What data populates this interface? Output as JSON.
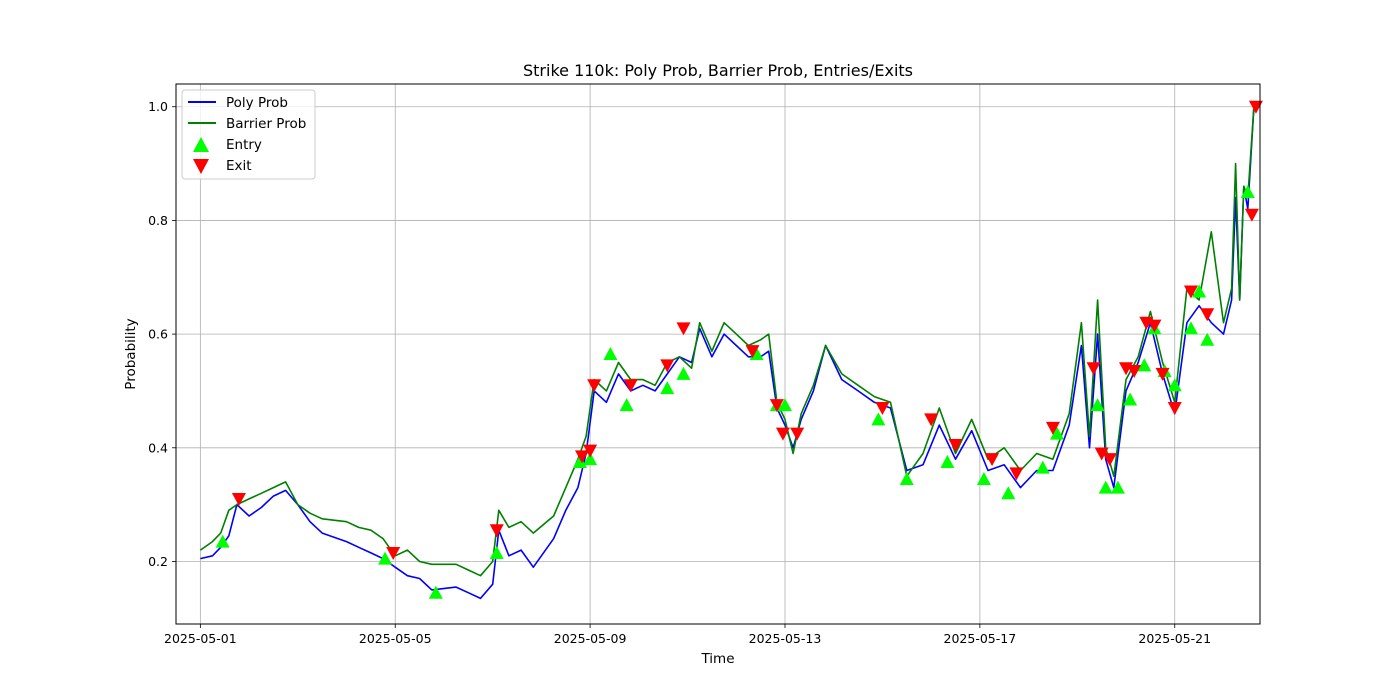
{
  "chart_data": {
    "type": "line",
    "title": "Strike 110k: Poly Prob, Barrier Prob, Entries/Exits",
    "xlabel": "Time",
    "ylabel": "Probability",
    "xlim": [
      "2025-04-30T12:00",
      "2025-05-22T18:00"
    ],
    "ylim": [
      0.09,
      1.04
    ],
    "x_ticks": [
      "2025-05-01",
      "2025-05-05",
      "2025-05-09",
      "2025-05-13",
      "2025-05-17",
      "2025-05-21"
    ],
    "y_ticks": [
      0.2,
      0.4,
      0.6,
      0.8,
      1.0
    ],
    "y_tick_labels": [
      "0.2",
      "0.4",
      "0.6",
      "0.8",
      "1.0"
    ],
    "grid": true,
    "legend_position": "top-left",
    "series": [
      {
        "name": "Poly Prob",
        "color": "#0000ff",
        "points": [
          [
            "2025-05-01T00:00",
            0.205
          ],
          [
            "2025-05-01T06:00",
            0.21
          ],
          [
            "2025-05-01T10:00",
            0.225
          ],
          [
            "2025-05-01T14:00",
            0.245
          ],
          [
            "2025-05-01T18:00",
            0.3
          ],
          [
            "2025-05-02T00:00",
            0.28
          ],
          [
            "2025-05-02T06:00",
            0.295
          ],
          [
            "2025-05-02T12:00",
            0.315
          ],
          [
            "2025-05-02T18:00",
            0.325
          ],
          [
            "2025-05-03T00:00",
            0.3
          ],
          [
            "2025-05-03T06:00",
            0.27
          ],
          [
            "2025-05-03T12:00",
            0.25
          ],
          [
            "2025-05-04T00:00",
            0.235
          ],
          [
            "2025-05-04T06:00",
            0.225
          ],
          [
            "2025-05-04T12:00",
            0.215
          ],
          [
            "2025-05-04T18:00",
            0.205
          ],
          [
            "2025-05-05T00:00",
            0.19
          ],
          [
            "2025-05-05T06:00",
            0.175
          ],
          [
            "2025-05-05T12:00",
            0.17
          ],
          [
            "2025-05-05T18:00",
            0.15
          ],
          [
            "2025-05-06T06:00",
            0.155
          ],
          [
            "2025-05-06T12:00",
            0.145
          ],
          [
            "2025-05-06T18:00",
            0.135
          ],
          [
            "2025-05-07T00:00",
            0.16
          ],
          [
            "2025-05-07T03:00",
            0.255
          ],
          [
            "2025-05-07T08:00",
            0.21
          ],
          [
            "2025-05-07T14:00",
            0.22
          ],
          [
            "2025-05-07T20:00",
            0.19
          ],
          [
            "2025-05-08T06:00",
            0.24
          ],
          [
            "2025-05-08T12:00",
            0.29
          ],
          [
            "2025-05-08T18:00",
            0.33
          ],
          [
            "2025-05-08T22:00",
            0.39
          ],
          [
            "2025-05-09T02:00",
            0.5
          ],
          [
            "2025-05-09T08:00",
            0.48
          ],
          [
            "2025-05-09T14:00",
            0.53
          ],
          [
            "2025-05-09T20:00",
            0.5
          ],
          [
            "2025-05-10T02:00",
            0.51
          ],
          [
            "2025-05-10T08:00",
            0.5
          ],
          [
            "2025-05-10T14:00",
            0.53
          ],
          [
            "2025-05-10T20:00",
            0.56
          ],
          [
            "2025-05-11T02:00",
            0.55
          ],
          [
            "2025-05-11T06:00",
            0.61
          ],
          [
            "2025-05-11T12:00",
            0.56
          ],
          [
            "2025-05-11T18:00",
            0.6
          ],
          [
            "2025-05-12T00:00",
            0.58
          ],
          [
            "2025-05-12T06:00",
            0.56
          ],
          [
            "2025-05-12T12:00",
            0.56
          ],
          [
            "2025-05-12T16:00",
            0.57
          ],
          [
            "2025-05-12T20:00",
            0.47
          ],
          [
            "2025-05-13T00:00",
            0.44
          ],
          [
            "2025-05-13T04:00",
            0.4
          ],
          [
            "2025-05-13T08:00",
            0.45
          ],
          [
            "2025-05-13T14:00",
            0.5
          ],
          [
            "2025-05-13T20:00",
            0.58
          ],
          [
            "2025-05-14T04:00",
            0.52
          ],
          [
            "2025-05-14T12:00",
            0.5
          ],
          [
            "2025-05-14T20:00",
            0.48
          ],
          [
            "2025-05-15T04:00",
            0.47
          ],
          [
            "2025-05-15T12:00",
            0.36
          ],
          [
            "2025-05-15T20:00",
            0.37
          ],
          [
            "2025-05-16T04:00",
            0.44
          ],
          [
            "2025-05-16T12:00",
            0.38
          ],
          [
            "2025-05-16T20:00",
            0.43
          ],
          [
            "2025-05-17T04:00",
            0.36
          ],
          [
            "2025-05-17T12:00",
            0.37
          ],
          [
            "2025-05-17T20:00",
            0.33
          ],
          [
            "2025-05-18T04:00",
            0.36
          ],
          [
            "2025-05-18T12:00",
            0.36
          ],
          [
            "2025-05-18T20:00",
            0.44
          ],
          [
            "2025-05-19T02:00",
            0.58
          ],
          [
            "2025-05-19T06:00",
            0.4
          ],
          [
            "2025-05-19T10:00",
            0.6
          ],
          [
            "2025-05-19T14:00",
            0.38
          ],
          [
            "2025-05-19T18:00",
            0.33
          ],
          [
            "2025-05-20T00:00",
            0.5
          ],
          [
            "2025-05-20T06:00",
            0.55
          ],
          [
            "2025-05-20T12:00",
            0.62
          ],
          [
            "2025-05-20T18:00",
            0.53
          ],
          [
            "2025-05-21T00:00",
            0.46
          ],
          [
            "2025-05-21T06:00",
            0.62
          ],
          [
            "2025-05-21T12:00",
            0.65
          ],
          [
            "2025-05-21T18:00",
            0.62
          ],
          [
            "2025-05-22T00:00",
            0.6
          ],
          [
            "2025-05-22T04:00",
            0.66
          ],
          [
            "2025-05-22T06:00",
            0.84
          ],
          [
            "2025-05-22T08:00",
            0.66
          ],
          [
            "2025-05-22T10:00",
            0.86
          ],
          [
            "2025-05-22T12:00",
            0.82
          ],
          [
            "2025-05-22T15:00",
            1.0
          ]
        ]
      },
      {
        "name": "Barrier Prob",
        "color": "#008000",
        "points": [
          [
            "2025-05-01T00:00",
            0.22
          ],
          [
            "2025-05-01T06:00",
            0.235
          ],
          [
            "2025-05-01T10:00",
            0.25
          ],
          [
            "2025-05-01T14:00",
            0.29
          ],
          [
            "2025-05-01T18:00",
            0.3
          ],
          [
            "2025-05-02T00:00",
            0.31
          ],
          [
            "2025-05-02T06:00",
            0.32
          ],
          [
            "2025-05-02T12:00",
            0.33
          ],
          [
            "2025-05-02T18:00",
            0.34
          ],
          [
            "2025-05-03T00:00",
            0.3
          ],
          [
            "2025-05-03T06:00",
            0.285
          ],
          [
            "2025-05-03T12:00",
            0.275
          ],
          [
            "2025-05-04T00:00",
            0.27
          ],
          [
            "2025-05-04T06:00",
            0.26
          ],
          [
            "2025-05-04T12:00",
            0.255
          ],
          [
            "2025-05-04T18:00",
            0.24
          ],
          [
            "2025-05-05T00:00",
            0.21
          ],
          [
            "2025-05-05T06:00",
            0.22
          ],
          [
            "2025-05-05T12:00",
            0.2
          ],
          [
            "2025-05-05T18:00",
            0.195
          ],
          [
            "2025-05-06T06:00",
            0.195
          ],
          [
            "2025-05-06T12:00",
            0.185
          ],
          [
            "2025-05-06T18:00",
            0.175
          ],
          [
            "2025-05-07T00:00",
            0.2
          ],
          [
            "2025-05-07T03:00",
            0.29
          ],
          [
            "2025-05-07T08:00",
            0.26
          ],
          [
            "2025-05-07T14:00",
            0.27
          ],
          [
            "2025-05-07T20:00",
            0.25
          ],
          [
            "2025-05-08T06:00",
            0.28
          ],
          [
            "2025-05-08T12:00",
            0.33
          ],
          [
            "2025-05-08T18:00",
            0.38
          ],
          [
            "2025-05-08T22:00",
            0.42
          ],
          [
            "2025-05-09T02:00",
            0.52
          ],
          [
            "2025-05-09T08:00",
            0.5
          ],
          [
            "2025-05-09T14:00",
            0.55
          ],
          [
            "2025-05-09T20:00",
            0.52
          ],
          [
            "2025-05-10T02:00",
            0.52
          ],
          [
            "2025-05-10T08:00",
            0.51
          ],
          [
            "2025-05-10T14:00",
            0.55
          ],
          [
            "2025-05-10T20:00",
            0.56
          ],
          [
            "2025-05-11T02:00",
            0.54
          ],
          [
            "2025-05-11T06:00",
            0.62
          ],
          [
            "2025-05-11T12:00",
            0.57
          ],
          [
            "2025-05-11T18:00",
            0.62
          ],
          [
            "2025-05-12T00:00",
            0.6
          ],
          [
            "2025-05-12T06:00",
            0.58
          ],
          [
            "2025-05-12T12:00",
            0.59
          ],
          [
            "2025-05-12T16:00",
            0.6
          ],
          [
            "2025-05-12T20:00",
            0.48
          ],
          [
            "2025-05-13T00:00",
            0.45
          ],
          [
            "2025-05-13T04:00",
            0.39
          ],
          [
            "2025-05-13T08:00",
            0.46
          ],
          [
            "2025-05-13T14:00",
            0.51
          ],
          [
            "2025-05-13T20:00",
            0.58
          ],
          [
            "2025-05-14T04:00",
            0.53
          ],
          [
            "2025-05-14T12:00",
            0.51
          ],
          [
            "2025-05-14T20:00",
            0.49
          ],
          [
            "2025-05-15T04:00",
            0.48
          ],
          [
            "2025-05-15T12:00",
            0.35
          ],
          [
            "2025-05-15T20:00",
            0.39
          ],
          [
            "2025-05-16T04:00",
            0.47
          ],
          [
            "2025-05-16T12:00",
            0.39
          ],
          [
            "2025-05-16T20:00",
            0.45
          ],
          [
            "2025-05-17T04:00",
            0.38
          ],
          [
            "2025-05-17T12:00",
            0.4
          ],
          [
            "2025-05-17T20:00",
            0.36
          ],
          [
            "2025-05-18T04:00",
            0.39
          ],
          [
            "2025-05-18T12:00",
            0.38
          ],
          [
            "2025-05-18T20:00",
            0.46
          ],
          [
            "2025-05-19T02:00",
            0.62
          ],
          [
            "2025-05-19T06:00",
            0.42
          ],
          [
            "2025-05-19T10:00",
            0.66
          ],
          [
            "2025-05-19T14:00",
            0.4
          ],
          [
            "2025-05-19T18:00",
            0.35
          ],
          [
            "2025-05-20T00:00",
            0.52
          ],
          [
            "2025-05-20T06:00",
            0.56
          ],
          [
            "2025-05-20T12:00",
            0.64
          ],
          [
            "2025-05-20T18:00",
            0.55
          ],
          [
            "2025-05-21T00:00",
            0.48
          ],
          [
            "2025-05-21T06:00",
            0.68
          ],
          [
            "2025-05-21T12:00",
            0.66
          ],
          [
            "2025-05-21T18:00",
            0.78
          ],
          [
            "2025-05-22T00:00",
            0.62
          ],
          [
            "2025-05-22T04:00",
            0.68
          ],
          [
            "2025-05-22T06:00",
            0.9
          ],
          [
            "2025-05-22T08:00",
            0.66
          ],
          [
            "2025-05-22T10:00",
            0.86
          ],
          [
            "2025-05-22T12:00",
            0.84
          ],
          [
            "2025-05-22T15:00",
            1.0
          ]
        ]
      }
    ],
    "markers": [
      {
        "name": "Entry",
        "color": "#00ff00",
        "shape": "triangle-up",
        "points": [
          [
            "2025-05-01T11:00",
            0.235
          ],
          [
            "2025-05-04T19:00",
            0.205
          ],
          [
            "2025-05-05T20:00",
            0.145
          ],
          [
            "2025-05-07T02:00",
            0.215
          ],
          [
            "2025-05-08T19:00",
            0.375
          ],
          [
            "2025-05-09T00:00",
            0.38
          ],
          [
            "2025-05-09T10:00",
            0.565
          ],
          [
            "2025-05-09T18:00",
            0.475
          ],
          [
            "2025-05-10T14:00",
            0.505
          ],
          [
            "2025-05-10T22:00",
            0.53
          ],
          [
            "2025-05-12T10:00",
            0.565
          ],
          [
            "2025-05-12T20:00",
            0.475
          ],
          [
            "2025-05-13T00:00",
            0.475
          ],
          [
            "2025-05-14T22:00",
            0.45
          ],
          [
            "2025-05-15T12:00",
            0.345
          ],
          [
            "2025-05-16T08:00",
            0.375
          ],
          [
            "2025-05-17T02:00",
            0.345
          ],
          [
            "2025-05-17T14:00",
            0.32
          ],
          [
            "2025-05-18T07:00",
            0.365
          ],
          [
            "2025-05-18T14:00",
            0.425
          ],
          [
            "2025-05-19T10:00",
            0.475
          ],
          [
            "2025-05-19T14:00",
            0.33
          ],
          [
            "2025-05-19T20:00",
            0.33
          ],
          [
            "2025-05-20T02:00",
            0.485
          ],
          [
            "2025-05-20T09:00",
            0.545
          ],
          [
            "2025-05-20T14:00",
            0.61
          ],
          [
            "2025-05-20T19:00",
            0.535
          ],
          [
            "2025-05-21T00:00",
            0.51
          ],
          [
            "2025-05-21T08:00",
            0.61
          ],
          [
            "2025-05-21T12:00",
            0.675
          ],
          [
            "2025-05-21T16:00",
            0.59
          ],
          [
            "2025-05-22T12:00",
            0.85
          ]
        ]
      },
      {
        "name": "Exit",
        "color": "#ff0000",
        "shape": "triangle-down",
        "points": [
          [
            "2025-05-01T19:00",
            0.31
          ],
          [
            "2025-05-04T23:00",
            0.215
          ],
          [
            "2025-05-07T02:00",
            0.255
          ],
          [
            "2025-05-08T20:00",
            0.385
          ],
          [
            "2025-05-09T00:00",
            0.395
          ],
          [
            "2025-05-09T02:00",
            0.51
          ],
          [
            "2025-05-09T20:00",
            0.51
          ],
          [
            "2025-05-10T14:00",
            0.545
          ],
          [
            "2025-05-10T22:00",
            0.61
          ],
          [
            "2025-05-12T08:00",
            0.57
          ],
          [
            "2025-05-12T20:00",
            0.475
          ],
          [
            "2025-05-12T23:00",
            0.425
          ],
          [
            "2025-05-13T06:00",
            0.425
          ],
          [
            "2025-05-15T00:00",
            0.47
          ],
          [
            "2025-05-16T00:00",
            0.45
          ],
          [
            "2025-05-16T12:00",
            0.405
          ],
          [
            "2025-05-17T06:00",
            0.38
          ],
          [
            "2025-05-17T18:00",
            0.355
          ],
          [
            "2025-05-18T12:00",
            0.435
          ],
          [
            "2025-05-19T08:00",
            0.54
          ],
          [
            "2025-05-19T12:00",
            0.39
          ],
          [
            "2025-05-19T16:00",
            0.38
          ],
          [
            "2025-05-20T00:00",
            0.54
          ],
          [
            "2025-05-20T04:00",
            0.535
          ],
          [
            "2025-05-20T10:00",
            0.62
          ],
          [
            "2025-05-20T14:00",
            0.615
          ],
          [
            "2025-05-20T18:00",
            0.53
          ],
          [
            "2025-05-21T00:00",
            0.47
          ],
          [
            "2025-05-21T08:00",
            0.675
          ],
          [
            "2025-05-21T16:00",
            0.635
          ],
          [
            "2025-05-22T14:00",
            0.81
          ],
          [
            "2025-05-22T16:00",
            1.0
          ]
        ]
      }
    ]
  }
}
